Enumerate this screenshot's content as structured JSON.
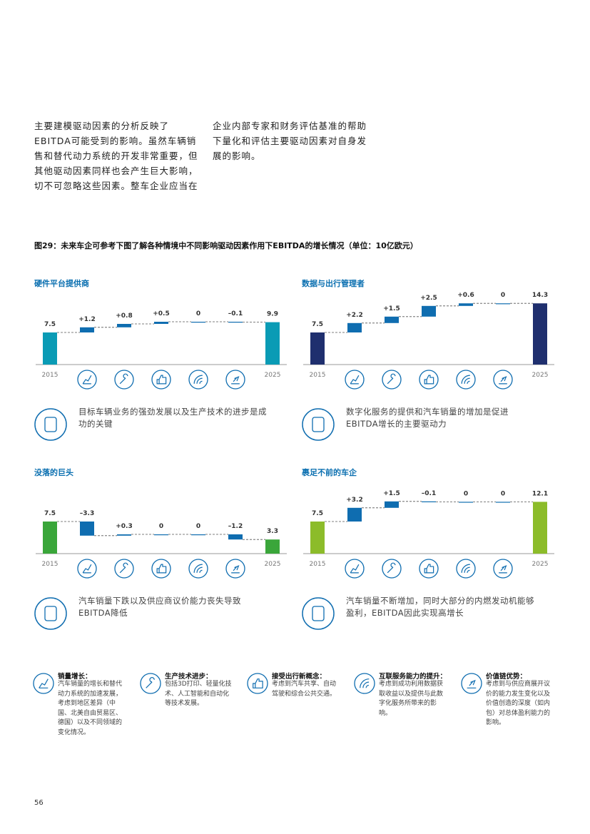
{
  "intro": {
    "col1": "主要建模驱动因素的分析反映了EBITDA可能受到的影响。虽然车辆销售和替代动力系统的开发非常重要，但其他驱动因素同样也会产生巨大影响，切不可忽略这些因素。整车企业应当在",
    "col2": "企业内部专家和财务评估基准的帮助下量化和评估主要驱动因素对自身发展的影响。"
  },
  "figure_title": "图29：未来车企可参考下图了解各种情境中不同影响驱动因素作用下EBITDA的增长情况（单位：10亿欧元）",
  "chart_data": [
    {
      "type": "waterfall",
      "title": "硬件平台提供商",
      "categories": [
        "2015",
        null,
        null,
        null,
        null,
        null,
        "2025"
      ],
      "values": [
        7.5,
        1.2,
        0.8,
        0.5,
        0,
        -0.1,
        9.9
      ],
      "value_labels": [
        "7.5",
        "+1.2",
        "+0.8",
        "+0.5",
        "0",
        "–0.1",
        "9.9"
      ],
      "total_color": "#0a9bb5",
      "step_color": "#0f6db0",
      "ylim": [
        0,
        15
      ],
      "caption": "目标车辆业务的强劲发展以及生产技术的进步是成功的关键"
    },
    {
      "type": "waterfall",
      "title": "数据与出行管理者",
      "categories": [
        "2015",
        null,
        null,
        null,
        null,
        null,
        "2025"
      ],
      "values": [
        7.5,
        2.2,
        1.5,
        2.5,
        0.6,
        0,
        14.3
      ],
      "value_labels": [
        "7.5",
        "+2.2",
        "+1.5",
        "+2.5",
        "+0.6",
        "0",
        "14.3"
      ],
      "total_color": "#1f2f6e",
      "step_color": "#0f6db0",
      "ylim": [
        0,
        15
      ],
      "caption": "数字化服务的提供和汽车销量的增加是促进EBITDA增长的主要驱动力"
    },
    {
      "type": "waterfall",
      "title": "没落的巨头",
      "categories": [
        "2015",
        null,
        null,
        null,
        null,
        null,
        "2025"
      ],
      "values": [
        7.5,
        -3.3,
        0.3,
        0,
        0,
        -1.2,
        3.3
      ],
      "value_labels": [
        "7.5",
        "–3.3",
        "+0.3",
        "0",
        "0",
        "–1.2",
        "3.3"
      ],
      "total_color": "#3aa63a",
      "step_color": "#0f6db0",
      "ylim": [
        0,
        15
      ],
      "caption": "汽车销量下跌以及供应商议价能力丧失导致EBITDA降低"
    },
    {
      "type": "waterfall",
      "title": "裹足不前的车企",
      "categories": [
        "2015",
        null,
        null,
        null,
        null,
        null,
        "2025"
      ],
      "values": [
        7.5,
        3.2,
        1.5,
        -0.1,
        0,
        0,
        12.1
      ],
      "value_labels": [
        "7.5",
        "+3.2",
        "+1.5",
        "–0.1",
        "0",
        "0",
        "12.1"
      ],
      "total_color": "#8cbc2a",
      "step_color": "#0f6db0",
      "ylim": [
        0,
        15
      ],
      "caption": "汽车销量不断增加，同时大部分的内燃发动机能够盈利，EBITDA因此实现高增长"
    }
  ],
  "legend": [
    {
      "title": "销量增长：",
      "text": "汽车销量的增长和替代动力系统的加速发展，考虑到地区差异（中国、北美自由贸易区、德国）以及不同领域的变化情况。"
    },
    {
      "title": "生产技术进步：",
      "text": "包括3D打印、轻量化技术、人工智能和自动化等技术发展。"
    },
    {
      "title": "接受出行新概念：",
      "text": "考虑到汽车共享、自动驾驶和综合公共交通。"
    },
    {
      "title": "互联服务能力的提升：",
      "text": "考虑到成功利用数据获取收益以及提供与此数字化服务所带来的影响。"
    },
    {
      "title": "价值链优势：",
      "text": "考虑到与供应商展开议价的能力发生变化以及价值创造的深度（如内包）对总体盈利能力的影响。"
    }
  ],
  "page_number": "56"
}
